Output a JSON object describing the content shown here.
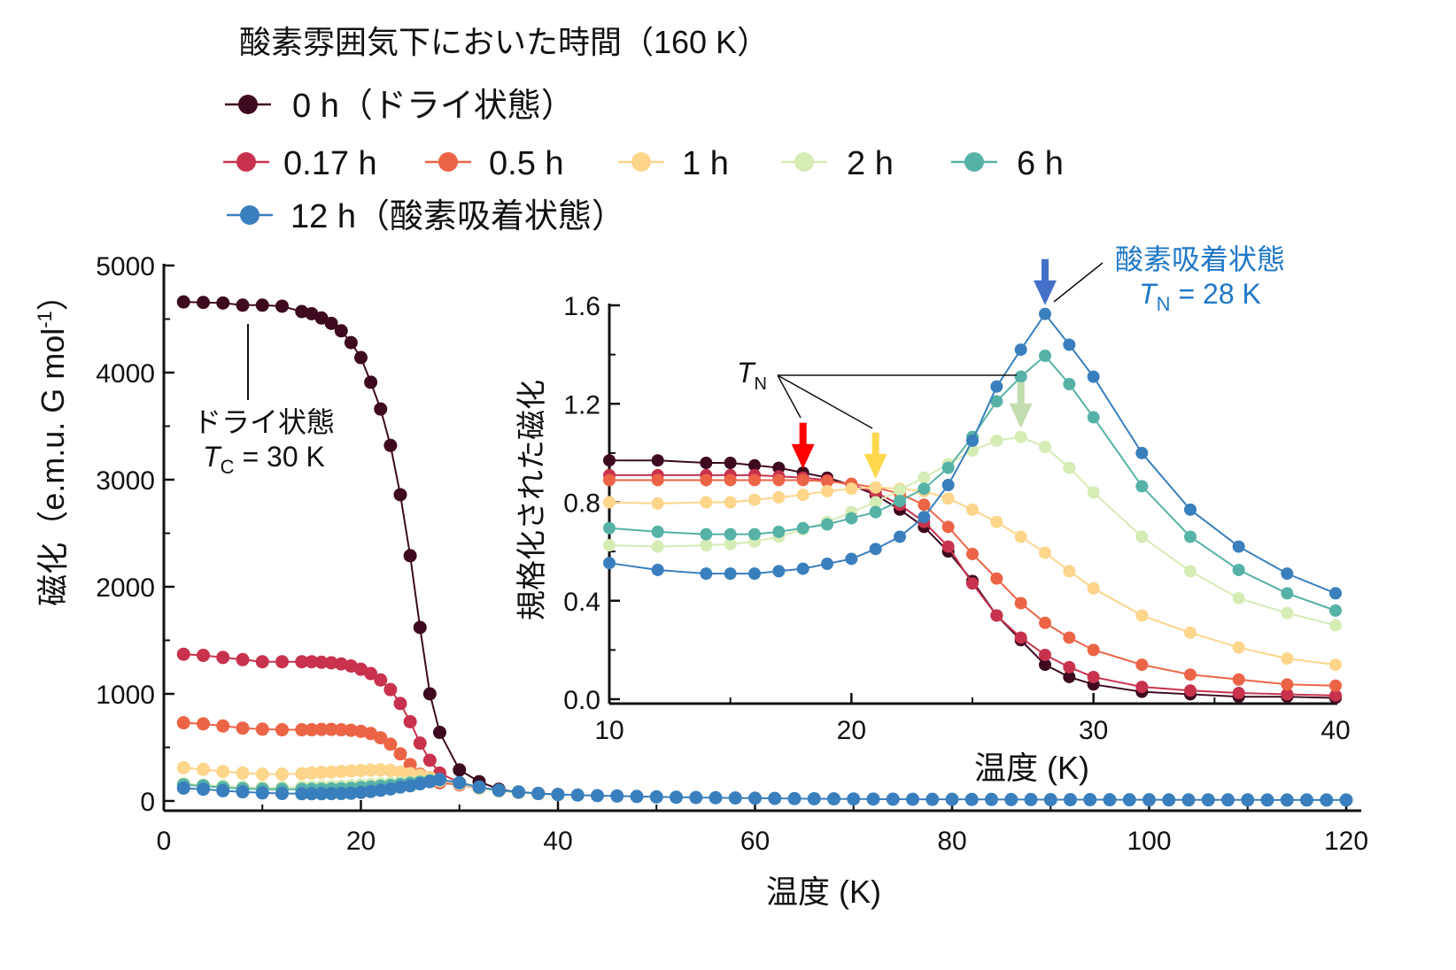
{
  "chart_data": [
    {
      "type": "line",
      "title": "酸素雰囲気下においた時間（160 K）",
      "xlabel": "温度 (K)",
      "ylabel": "磁化（e.m.u. G mol",
      "ylabel_sup": "-1",
      "ylabel_end": "）",
      "xlim": [
        0,
        120
      ],
      "ylim": [
        0,
        5000
      ],
      "xticks": [
        "0",
        "20",
        "40",
        "60",
        "80",
        "100",
        "120"
      ],
      "yticks": [
        "0",
        "1000",
        "2000",
        "3000",
        "4000",
        "5000"
      ],
      "x": [
        2,
        4,
        6,
        8,
        10,
        12,
        14,
        15,
        16,
        17,
        18,
        19,
        20,
        21,
        22,
        23,
        24,
        25,
        26,
        27,
        28,
        30,
        32,
        34,
        36,
        38,
        40
      ],
      "x_high": [
        42,
        44,
        46,
        48,
        50,
        52,
        54,
        56,
        58,
        60,
        62,
        64,
        66,
        68,
        70,
        72,
        74,
        76,
        78,
        80,
        82,
        84,
        86,
        88,
        90,
        92,
        94,
        96,
        98,
        100,
        102,
        104,
        106,
        108,
        110,
        112,
        114,
        116,
        118,
        120
      ],
      "series": [
        {
          "name": "0 h（ドライ状態）",
          "color": "#3d0a1f",
          "values": [
            4660,
            4655,
            4650,
            4630,
            4630,
            4620,
            4570,
            4550,
            4510,
            4460,
            4390,
            4280,
            4140,
            3910,
            3660,
            3320,
            2860,
            2290,
            1620,
            1000,
            640,
            290,
            180,
            110,
            80,
            70,
            60
          ]
        },
        {
          "name": "0.17 h",
          "color": "#c8324d",
          "values": [
            1370,
            1360,
            1340,
            1320,
            1300,
            1300,
            1300,
            1300,
            1295,
            1290,
            1280,
            1260,
            1230,
            1190,
            1130,
            1040,
            910,
            740,
            540,
            380,
            260,
            170,
            120,
            95,
            80,
            70,
            60
          ]
        },
        {
          "name": "0.5 h",
          "color": "#ec6446",
          "values": [
            730,
            720,
            700,
            680,
            670,
            665,
            665,
            665,
            668,
            668,
            665,
            660,
            650,
            630,
            590,
            530,
            440,
            340,
            250,
            200,
            170,
            150,
            120,
            95,
            80,
            70,
            60
          ]
        },
        {
          "name": "1 h",
          "color": "#fdd58b",
          "values": [
            310,
            295,
            275,
            260,
            250,
            250,
            255,
            260,
            265,
            270,
            275,
            280,
            285,
            288,
            290,
            285,
            270,
            255,
            240,
            220,
            200,
            160,
            120,
            95,
            80,
            70,
            60
          ]
        },
        {
          "name": "2 h",
          "color": "#d5ecb5",
          "values": [
            160,
            150,
            140,
            130,
            125,
            125,
            128,
            130,
            132,
            135,
            138,
            142,
            150,
            155,
            160,
            165,
            170,
            175,
            180,
            185,
            190,
            165,
            125,
            95,
            80,
            70,
            60
          ]
        },
        {
          "name": "6 h",
          "color": "#56b2a6",
          "values": [
            150,
            140,
            125,
            115,
            110,
            108,
            108,
            108,
            110,
            112,
            115,
            118,
            125,
            130,
            138,
            145,
            155,
            165,
            175,
            188,
            200,
            170,
            128,
            98,
            82,
            70,
            60
          ]
        },
        {
          "name": "12 h（酸素吸着状態）",
          "color": "#3a7fbd",
          "values": [
            120,
            110,
            95,
            85,
            75,
            70,
            68,
            68,
            68,
            69,
            70,
            72,
            80,
            88,
            100,
            112,
            130,
            142,
            160,
            180,
            200,
            170,
            130,
            100,
            85,
            70,
            60
          ],
          "values_high": [
            55,
            50,
            46,
            42,
            38,
            35,
            32,
            30,
            28,
            26,
            24,
            22,
            21,
            20,
            19,
            18,
            17,
            16,
            15,
            15,
            14,
            14,
            13,
            13,
            12,
            12,
            12,
            11,
            11,
            11,
            10,
            10,
            10,
            10,
            10,
            9,
            9,
            9,
            9,
            9
          ]
        }
      ],
      "annotations": [
        {
          "text": "ドライ状態",
          "text2_main": "T",
          "text2_sub": "C",
          "text2_rest": " = 30 K"
        }
      ]
    },
    {
      "type": "line",
      "title": "inset",
      "xlabel": "温度 (K)",
      "ylabel": "規格化された磁化",
      "xlim": [
        10,
        40
      ],
      "ylim": [
        0,
        1.6
      ],
      "xticks": [
        "10",
        "20",
        "30",
        "40"
      ],
      "yticks": [
        "0.0",
        "0.4",
        "0.8",
        "1.2",
        "1.6"
      ],
      "x": [
        10,
        12,
        14,
        15,
        16,
        17,
        18,
        19,
        20,
        21,
        22,
        23,
        24,
        25,
        26,
        27,
        28,
        29,
        30,
        32,
        34,
        36,
        38,
        40
      ],
      "series": [
        {
          "name": "0 h",
          "color": "#3d0a1f",
          "values": [
            0.97,
            0.97,
            0.96,
            0.96,
            0.95,
            0.94,
            0.92,
            0.9,
            0.87,
            0.83,
            0.77,
            0.7,
            0.6,
            0.48,
            0.34,
            0.24,
            0.14,
            0.09,
            0.06,
            0.03,
            0.02,
            0.01,
            0.01,
            0.005
          ]
        },
        {
          "name": "0.17 h",
          "color": "#c8324d",
          "values": [
            0.91,
            0.91,
            0.91,
            0.91,
            0.91,
            0.905,
            0.9,
            0.89,
            0.87,
            0.84,
            0.79,
            0.72,
            0.62,
            0.47,
            0.34,
            0.25,
            0.18,
            0.13,
            0.09,
            0.05,
            0.035,
            0.025,
            0.02,
            0.015
          ]
        },
        {
          "name": "0.5 h",
          "color": "#ec6446",
          "values": [
            0.89,
            0.89,
            0.89,
            0.89,
            0.89,
            0.89,
            0.89,
            0.885,
            0.875,
            0.86,
            0.835,
            0.79,
            0.7,
            0.59,
            0.49,
            0.39,
            0.31,
            0.25,
            0.2,
            0.14,
            0.1,
            0.08,
            0.06,
            0.055
          ]
        },
        {
          "name": "1 h",
          "color": "#fdd58b",
          "values": [
            0.8,
            0.795,
            0.8,
            0.8,
            0.81,
            0.82,
            0.83,
            0.845,
            0.855,
            0.86,
            0.855,
            0.845,
            0.815,
            0.77,
            0.72,
            0.66,
            0.595,
            0.52,
            0.45,
            0.34,
            0.27,
            0.21,
            0.165,
            0.14
          ]
        },
        {
          "name": "2 h",
          "color": "#d5ecb5",
          "values": [
            0.625,
            0.62,
            0.625,
            0.63,
            0.64,
            0.66,
            0.69,
            0.72,
            0.76,
            0.8,
            0.85,
            0.9,
            0.955,
            1.01,
            1.05,
            1.065,
            1.025,
            0.94,
            0.84,
            0.66,
            0.52,
            0.41,
            0.35,
            0.3
          ]
        },
        {
          "name": "6 h",
          "color": "#56b2a6",
          "values": [
            0.695,
            0.68,
            0.67,
            0.67,
            0.67,
            0.68,
            0.695,
            0.71,
            0.735,
            0.76,
            0.805,
            0.855,
            0.94,
            1.065,
            1.21,
            1.31,
            1.395,
            1.28,
            1.145,
            0.865,
            0.66,
            0.525,
            0.43,
            0.36
          ]
        },
        {
          "name": "12 h",
          "color": "#3a7fbd",
          "values": [
            0.553,
            0.525,
            0.51,
            0.51,
            0.51,
            0.52,
            0.53,
            0.55,
            0.57,
            0.61,
            0.66,
            0.74,
            0.87,
            1.05,
            1.27,
            1.42,
            1.565,
            1.44,
            1.31,
            1.0,
            0.77,
            0.62,
            0.51,
            0.43
          ]
        }
      ],
      "markers": [
        {
          "label": "T_N 0.17 h",
          "x": 18,
          "color": "#ff0000"
        },
        {
          "label": "T_N 1 h",
          "x": 21,
          "color": "#ffd84d"
        },
        {
          "label": "T_N 2 h",
          "x": 27,
          "color": "#c2ddb0"
        },
        {
          "label": "T_N 12 h",
          "x": 28,
          "color": "#4470c8"
        }
      ],
      "annotations": {
        "tn_main": "T",
        "tn_sub": "N",
        "oxygen_label": "酸素吸着状態",
        "oxygen_tn_main": "T",
        "oxygen_tn_sub": "N",
        "oxygen_tn_rest": " = 28 K",
        "oxygen_color": "#1f78c8"
      }
    }
  ]
}
